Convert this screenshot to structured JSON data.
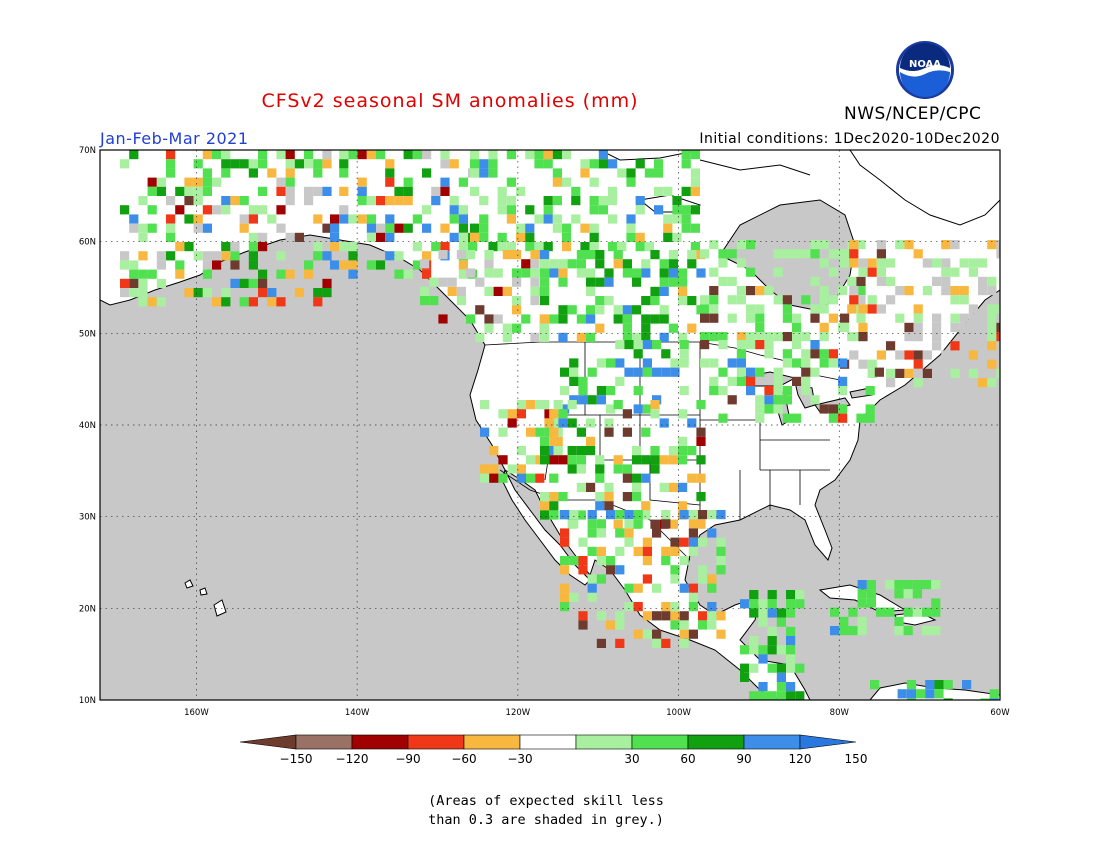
{
  "header": {
    "title": "CFSv2 seasonal SM anomalies (mm)",
    "period": "Jan-Feb-Mar 2021",
    "initial_conditions": "Initial conditions: 1Dec2020-10Dec2020",
    "agency": "NWS/NCEP/CPC",
    "logo_text": "NOAA"
  },
  "axes": {
    "lat_labels": [
      "70N",
      "60N",
      "50N",
      "40N",
      "30N",
      "20N",
      "10N"
    ],
    "lon_labels": [
      "160W",
      "140W",
      "120W",
      "100W",
      "80W",
      "60W"
    ],
    "lat_range": [
      10,
      70
    ],
    "lon_range": [
      -172,
      -60
    ]
  },
  "legend": {
    "labels": [
      "-150",
      "-120",
      "-90",
      "-60",
      "-30",
      "30",
      "60",
      "90",
      "120",
      "150"
    ],
    "colors": [
      "#6e3c2e",
      "#9a7265",
      "#a00000",
      "#f03818",
      "#f8b840",
      "#ffffff",
      "#a8f0a0",
      "#50e050",
      "#10a010",
      "#3c8ee8",
      "#2878e0"
    ]
  },
  "colors": {
    "ocean": "#c8c8c8",
    "land": "#ffffff",
    "grey_skill": "#c8c8c8"
  },
  "footnote": {
    "line1": "(Areas of expected skill less",
    "line2": "than 0.3 are shaded in grey.)"
  }
}
